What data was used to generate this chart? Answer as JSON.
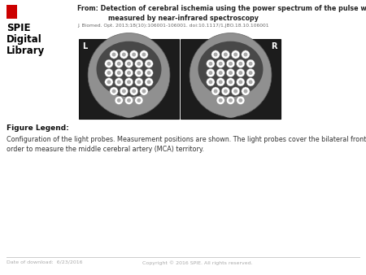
{
  "background_color": "#ffffff",
  "spie_logo_text": [
    "SPIE",
    "Digital",
    "Library"
  ],
  "spie_logo_color": "#000000",
  "red_bar_color": "#cc0000",
  "title_line1": "From: Detection of cerebral ischemia using the power spectrum of the pulse wave",
  "title_line2": "measured by near-infrared spectroscopy",
  "title_ref": "J. Biomed. Opt. 2013;18(10):106001-106001. doi:10.1117/1.JBO.18.10.106001",
  "figure_legend_bold": "Figure Legend:",
  "figure_legend_text": "Configuration of the light probes. Measurement positions are shown. The light probes cover the bilateral fronto-temporal areas in\norder to measure the middle cerebral artery (MCA) territory.",
  "footer_left": "Date of download:  6/23/2016",
  "footer_right": "Copyright © 2016 SPIE. All rights reserved.",
  "footer_color": "#aaaaaa",
  "footer_line_color": "#cccccc",
  "left_label": "L",
  "right_label": "R",
  "title_color": "#222222",
  "ref_color": "#666666",
  "legend_color": "#111111",
  "legend_text_color": "#333333"
}
